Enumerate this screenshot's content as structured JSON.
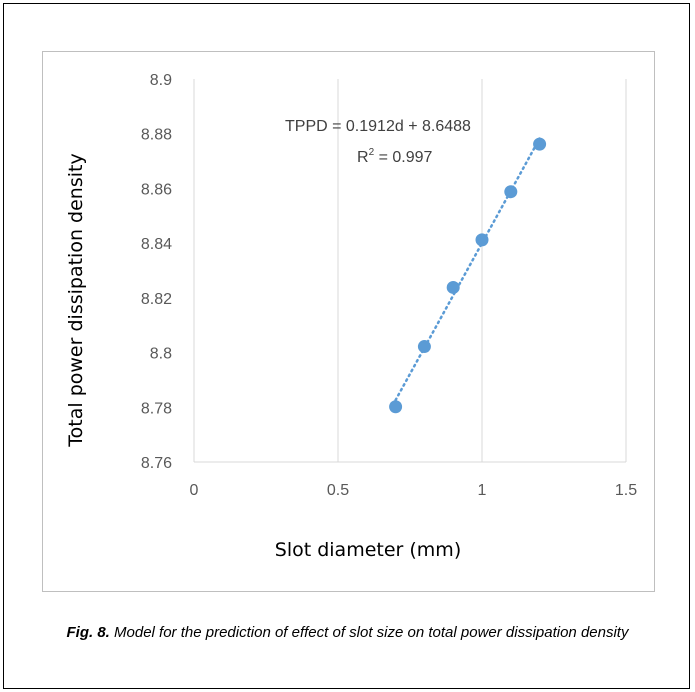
{
  "chart_data": {
    "type": "scatter",
    "title": "",
    "xlabel": "Slot diameter (mm)",
    "ylabel": "Total power dissipation  density",
    "xlim": [
      0,
      1.5
    ],
    "ylim": [
      8.76,
      8.9
    ],
    "x_ticks": [
      "0",
      "0.5",
      "1",
      "1.5"
    ],
    "y_ticks": [
      "8.76",
      "8.78",
      "8.8",
      "8.82",
      "8.84",
      "8.86",
      "8.88",
      "8.9"
    ],
    "grid": "vertical",
    "legend": "none",
    "points": {
      "x": [
        0.7,
        0.8,
        0.9,
        1.0,
        1.1,
        1.2
      ],
      "y": [
        8.7802,
        8.8022,
        8.8238,
        8.8412,
        8.8588,
        8.8762
      ]
    },
    "trendline": {
      "style": "dotted",
      "slope": 0.1912,
      "intercept": 8.6488,
      "equation": "TPPD = 0.1912d + 8.6488",
      "r2_prefix": "R",
      "r2_sup": "2",
      "r2_value": " = 0.997"
    },
    "colors": {
      "marker": "#5b9bd5",
      "trendline": "#5b9bd5",
      "grid": "#d9d9d9",
      "tick_text": "#595959"
    }
  },
  "caption": {
    "label": "Fig. 8.",
    "text": " Model for the prediction of effect of slot size on total power dissipation density"
  }
}
